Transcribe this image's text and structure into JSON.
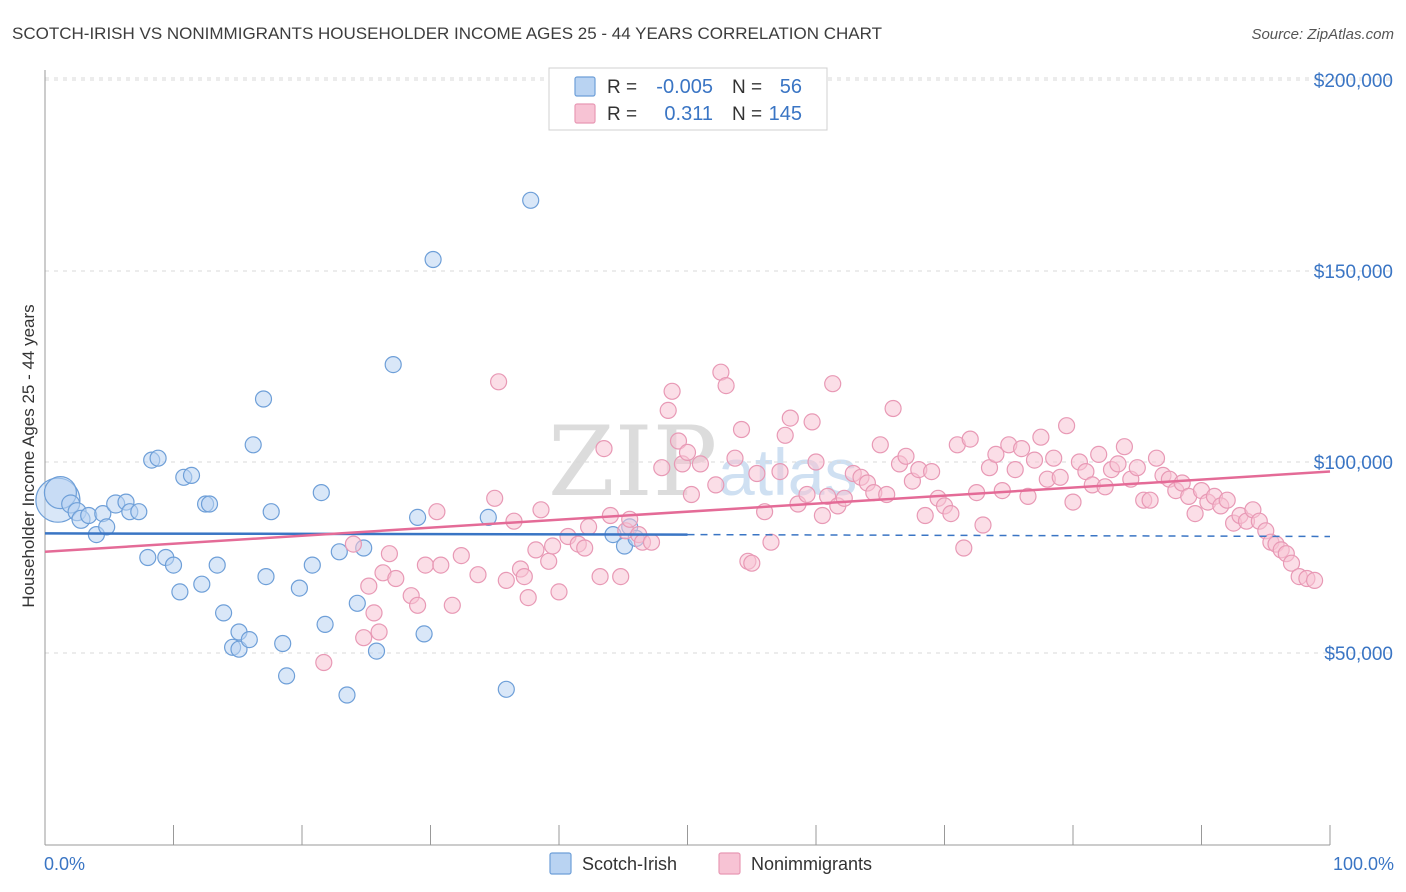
{
  "colors": {
    "blue": "#3a75c4",
    "blue_fill": "#b9d3f2",
    "blue_stroke": "#6e9fd8",
    "pink": "#e46b97",
    "pink_fill": "#f7c3d4",
    "pink_stroke": "#e899b5",
    "grid": "#d9d9d9",
    "axis": "#999999"
  },
  "watermark": {
    "zip": "ZIP",
    "atlas": "atlas"
  },
  "chart_data": {
    "type": "scatter",
    "title": "SCOTCH-IRISH VS NONIMMIGRANTS HOUSEHOLDER INCOME AGES 25 - 44 YEARS CORRELATION CHART",
    "source": "Source: ZipAtlas.com",
    "xlabel": "",
    "ylabel": "Householder Income Ages 25 - 44 years",
    "xlim": [
      0,
      100
    ],
    "ylim": [
      0,
      210000
    ],
    "x_tick_labels": [
      "0.0%",
      "100.0%"
    ],
    "y_ticks": [
      50000,
      100000,
      150000,
      200000
    ],
    "y_tick_labels": [
      "$50,000",
      "$100,000",
      "$150,000",
      "$200,000"
    ],
    "grid": true,
    "legend": {
      "placement": "top-center",
      "entries": [
        {
          "series": "Scotch-Irish",
          "r_label": "R =",
          "r_value": "-0.005",
          "n_label": "N =",
          "n_value": "56"
        },
        {
          "series": "Nonimmigrants",
          "r_label": "R =",
          "r_value": "0.311",
          "n_label": "N =",
          "n_value": "145"
        }
      ]
    },
    "bottom_legend": [
      "Scotch-Irish",
      "Nonimmigrants"
    ],
    "series": [
      {
        "name": "Scotch-Irish",
        "color": "#3a75c4",
        "trend": {
          "x_start": 0,
          "y_start": 81300,
          "x_solid_end": 50,
          "y_solid_end": 81000,
          "x_end": 100,
          "y_end": 80500
        },
        "points": [
          [
            1.0,
            90000,
            22
          ],
          [
            1.2,
            92000,
            16
          ],
          [
            2.0,
            89000,
            9
          ],
          [
            2.5,
            87000,
            9
          ],
          [
            2.8,
            85000,
            9
          ],
          [
            3.4,
            86000,
            8
          ],
          [
            4.0,
            81000,
            8
          ],
          [
            4.5,
            86500,
            8
          ],
          [
            4.8,
            83000,
            8
          ],
          [
            5.5,
            89000,
            9
          ],
          [
            6.3,
            89500,
            8
          ],
          [
            6.6,
            87000,
            8
          ],
          [
            7.3,
            87000,
            8
          ],
          [
            8.0,
            75000,
            8
          ],
          [
            8.3,
            100500,
            8
          ],
          [
            8.8,
            101000,
            8
          ],
          [
            9.4,
            75000,
            8
          ],
          [
            10.0,
            73000,
            8
          ],
          [
            10.5,
            66000,
            8
          ],
          [
            10.8,
            96000,
            8
          ],
          [
            11.4,
            96500,
            8
          ],
          [
            12.2,
            68000,
            8
          ],
          [
            12.5,
            89000,
            8
          ],
          [
            12.8,
            89000,
            8
          ],
          [
            13.4,
            73000,
            8
          ],
          [
            13.9,
            60500,
            8
          ],
          [
            14.6,
            51500,
            8
          ],
          [
            15.1,
            55500,
            8
          ],
          [
            15.1,
            51000,
            8
          ],
          [
            15.9,
            53500,
            8
          ],
          [
            16.2,
            104500,
            8
          ],
          [
            17.0,
            116500,
            8
          ],
          [
            17.2,
            70000,
            8
          ],
          [
            17.6,
            87000,
            8
          ],
          [
            18.5,
            52500,
            8
          ],
          [
            18.8,
            44000,
            8
          ],
          [
            19.8,
            67000,
            8
          ],
          [
            20.8,
            73000,
            8
          ],
          [
            21.5,
            92000,
            8
          ],
          [
            21.8,
            57500,
            8
          ],
          [
            22.9,
            76500,
            8
          ],
          [
            23.5,
            39000,
            8
          ],
          [
            24.3,
            63000,
            8
          ],
          [
            24.8,
            77500,
            8
          ],
          [
            25.8,
            50500,
            8
          ],
          [
            27.1,
            125500,
            8
          ],
          [
            29.0,
            85500,
            8
          ],
          [
            29.5,
            55000,
            8
          ],
          [
            30.2,
            153000,
            8
          ],
          [
            34.5,
            85500,
            8
          ],
          [
            35.9,
            40500,
            8
          ],
          [
            37.8,
            168500,
            8
          ],
          [
            44.2,
            81000,
            8
          ],
          [
            45.1,
            78000,
            8
          ],
          [
            45.5,
            83000,
            8
          ],
          [
            46.0,
            80000,
            8
          ]
        ]
      },
      {
        "name": "Nonimmigrants",
        "color": "#e46b97",
        "trend": {
          "x_start": 0,
          "y_start": 76500,
          "x_end": 100,
          "y_end": 97500
        },
        "points": [
          [
            21.7,
            47500,
            8
          ],
          [
            24.0,
            78500,
            8
          ],
          [
            24.8,
            54000,
            8
          ],
          [
            25.2,
            67500,
            8
          ],
          [
            25.6,
            60500,
            8
          ],
          [
            26.0,
            55500,
            8
          ],
          [
            26.3,
            71000,
            8
          ],
          [
            26.8,
            76000,
            8
          ],
          [
            27.3,
            69500,
            8
          ],
          [
            28.5,
            65000,
            8
          ],
          [
            29.0,
            62500,
            8
          ],
          [
            29.6,
            73000,
            8
          ],
          [
            30.5,
            87000,
            8
          ],
          [
            30.8,
            73000,
            8
          ],
          [
            31.7,
            62500,
            8
          ],
          [
            32.4,
            75500,
            8
          ],
          [
            33.7,
            70500,
            8
          ],
          [
            35.0,
            90500,
            8
          ],
          [
            35.3,
            121000,
            8
          ],
          [
            35.9,
            69000,
            8
          ],
          [
            36.5,
            84500,
            8
          ],
          [
            37.0,
            72000,
            8
          ],
          [
            37.3,
            70000,
            8
          ],
          [
            37.6,
            64500,
            8
          ],
          [
            38.2,
            77000,
            8
          ],
          [
            38.6,
            87500,
            8
          ],
          [
            39.2,
            74000,
            8
          ],
          [
            39.5,
            78000,
            8
          ],
          [
            40.0,
            66000,
            8
          ],
          [
            40.7,
            80500,
            8
          ],
          [
            41.5,
            78500,
            8
          ],
          [
            42.0,
            77500,
            8
          ],
          [
            42.3,
            83000,
            8
          ],
          [
            43.2,
            70000,
            8
          ],
          [
            43.5,
            103500,
            8
          ],
          [
            44.0,
            86000,
            8
          ],
          [
            44.8,
            70000,
            8
          ],
          [
            45.2,
            82000,
            8
          ],
          [
            45.5,
            85000,
            8
          ],
          [
            46.2,
            81000,
            8
          ],
          [
            46.5,
            79000,
            8
          ],
          [
            47.2,
            79000,
            8
          ],
          [
            48.0,
            98500,
            8
          ],
          [
            48.5,
            113500,
            8
          ],
          [
            48.8,
            118500,
            8
          ],
          [
            49.3,
            105500,
            8
          ],
          [
            49.6,
            99500,
            8
          ],
          [
            50.0,
            102500,
            8
          ],
          [
            50.3,
            91500,
            8
          ],
          [
            51.0,
            99500,
            8
          ],
          [
            52.2,
            94000,
            8
          ],
          [
            52.6,
            123500,
            8
          ],
          [
            53.0,
            120000,
            8
          ],
          [
            53.7,
            101000,
            8
          ],
          [
            54.2,
            108500,
            8
          ],
          [
            54.7,
            74000,
            8
          ],
          [
            55.0,
            73500,
            8
          ],
          [
            55.4,
            97000,
            8
          ],
          [
            56.0,
            87000,
            8
          ],
          [
            56.5,
            79000,
            8
          ],
          [
            57.2,
            97500,
            8
          ],
          [
            57.6,
            107000,
            8
          ],
          [
            58.0,
            111500,
            8
          ],
          [
            58.6,
            89000,
            8
          ],
          [
            59.3,
            91500,
            8
          ],
          [
            59.7,
            110500,
            8
          ],
          [
            60.0,
            100000,
            8
          ],
          [
            60.5,
            86000,
            8
          ],
          [
            60.9,
            91000,
            8
          ],
          [
            61.3,
            120500,
            8
          ],
          [
            61.7,
            88500,
            8
          ],
          [
            62.2,
            90500,
            8
          ],
          [
            62.9,
            97000,
            8
          ],
          [
            63.5,
            96000,
            8
          ],
          [
            64.0,
            94500,
            8
          ],
          [
            64.5,
            92000,
            8
          ],
          [
            65.0,
            104500,
            8
          ],
          [
            65.5,
            91500,
            8
          ],
          [
            66.0,
            114000,
            8
          ],
          [
            66.5,
            99500,
            8
          ],
          [
            67.0,
            101500,
            8
          ],
          [
            67.5,
            95000,
            8
          ],
          [
            68.0,
            98000,
            8
          ],
          [
            68.5,
            86000,
            8
          ],
          [
            69.0,
            97500,
            8
          ],
          [
            69.5,
            90500,
            8
          ],
          [
            70.0,
            88500,
            8
          ],
          [
            70.5,
            86500,
            8
          ],
          [
            71.0,
            104500,
            8
          ],
          [
            71.5,
            77500,
            8
          ],
          [
            72.0,
            106000,
            8
          ],
          [
            72.5,
            92000,
            8
          ],
          [
            73.0,
            83500,
            8
          ],
          [
            73.5,
            98500,
            8
          ],
          [
            74.0,
            102000,
            8
          ],
          [
            74.5,
            92500,
            8
          ],
          [
            75.0,
            104500,
            8
          ],
          [
            75.5,
            98000,
            8
          ],
          [
            76.0,
            103500,
            8
          ],
          [
            76.5,
            91000,
            8
          ],
          [
            77.0,
            100500,
            8
          ],
          [
            77.5,
            106500,
            8
          ],
          [
            78.0,
            95500,
            8
          ],
          [
            78.5,
            101000,
            8
          ],
          [
            79.0,
            96000,
            8
          ],
          [
            79.5,
            109500,
            8
          ],
          [
            80.0,
            89500,
            8
          ],
          [
            80.5,
            100000,
            8
          ],
          [
            81.0,
            97500,
            8
          ],
          [
            81.5,
            94000,
            8
          ],
          [
            82.0,
            102000,
            8
          ],
          [
            82.5,
            93500,
            8
          ],
          [
            83.0,
            98000,
            8
          ],
          [
            83.5,
            99500,
            8
          ],
          [
            84.0,
            104000,
            8
          ],
          [
            84.5,
            95500,
            8
          ],
          [
            85.0,
            98500,
            8
          ],
          [
            85.5,
            90000,
            8
          ],
          [
            86.0,
            90000,
            8
          ],
          [
            86.5,
            101000,
            8
          ],
          [
            87.0,
            96500,
            8
          ],
          [
            87.5,
            95500,
            8
          ],
          [
            88.0,
            92500,
            8
          ],
          [
            88.5,
            94500,
            8
          ],
          [
            89.0,
            91000,
            8
          ],
          [
            89.5,
            86500,
            8
          ],
          [
            90.0,
            92500,
            8
          ],
          [
            90.5,
            89500,
            8
          ],
          [
            91.0,
            91000,
            8
          ],
          [
            91.5,
            88500,
            8
          ],
          [
            92.0,
            90000,
            8
          ],
          [
            92.5,
            84000,
            8
          ],
          [
            93.0,
            86000,
            8
          ],
          [
            93.5,
            84500,
            8
          ],
          [
            94.0,
            87500,
            8
          ],
          [
            94.5,
            84500,
            8
          ],
          [
            95.0,
            82000,
            8
          ],
          [
            95.4,
            79000,
            8
          ],
          [
            95.8,
            78500,
            8
          ],
          [
            96.2,
            77000,
            8
          ],
          [
            96.6,
            76000,
            8
          ],
          [
            97.0,
            73500,
            8
          ],
          [
            97.6,
            70000,
            8
          ],
          [
            98.2,
            69500,
            8
          ],
          [
            98.8,
            69000,
            8
          ]
        ]
      }
    ]
  }
}
